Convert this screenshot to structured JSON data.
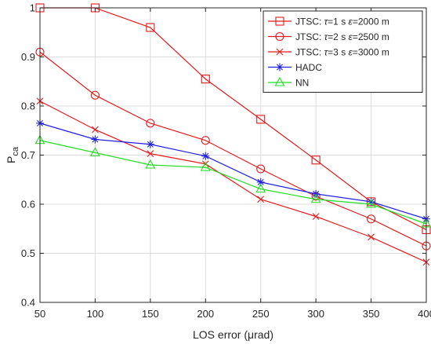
{
  "chart_data": {
    "type": "line",
    "xlabel": "LOS error (μrad)",
    "ylabel_main": "P",
    "ylabel_sub": "ca",
    "xlim": [
      50,
      400
    ],
    "ylim": [
      0.4,
      1.0
    ],
    "grid": true,
    "legend_position": "top-right",
    "x": [
      50,
      100,
      150,
      200,
      250,
      300,
      350,
      400
    ],
    "x_ticks": [
      "50",
      "100",
      "150",
      "200",
      "250",
      "300",
      "350",
      "400"
    ],
    "y_ticks": [
      "0.4",
      "0.5",
      "0.6",
      "0.7",
      "0.8",
      "0.9",
      "1"
    ],
    "y_tick_values": [
      0.4,
      0.5,
      0.6,
      0.7,
      0.8,
      0.9,
      1.0
    ],
    "series": [
      {
        "name_parts": [
          "JTSC: ",
          "τ",
          "=1 s ",
          "ε",
          "=2000 m"
        ],
        "color": "#e31a1c",
        "marker": "square",
        "values": [
          1.0,
          1.0,
          0.96,
          0.855,
          0.773,
          0.69,
          0.605,
          0.548
        ]
      },
      {
        "name_parts": [
          "JTSC: ",
          "τ",
          "=2 s ",
          "ε",
          "=2500 m"
        ],
        "color": "#e31a1c",
        "marker": "circle",
        "values": [
          0.91,
          0.822,
          0.765,
          0.73,
          0.672,
          0.616,
          0.57,
          0.515
        ]
      },
      {
        "name_parts": [
          "JTSC: ",
          "τ",
          "=3 s ",
          "ε",
          "=3000 m"
        ],
        "color": "#e31a1c",
        "marker": "x",
        "values": [
          0.81,
          0.752,
          0.703,
          0.682,
          0.61,
          0.575,
          0.533,
          0.482
        ]
      },
      {
        "name_parts": [
          "HADC"
        ],
        "color": "#1f1fe0",
        "marker": "star",
        "values": [
          0.765,
          0.732,
          0.722,
          0.698,
          0.645,
          0.621,
          0.605,
          0.57
        ]
      },
      {
        "name_parts": [
          "NN"
        ],
        "color": "#22dd22",
        "marker": "triangle",
        "values": [
          0.73,
          0.705,
          0.68,
          0.675,
          0.631,
          0.61,
          0.6,
          0.56
        ]
      }
    ]
  }
}
